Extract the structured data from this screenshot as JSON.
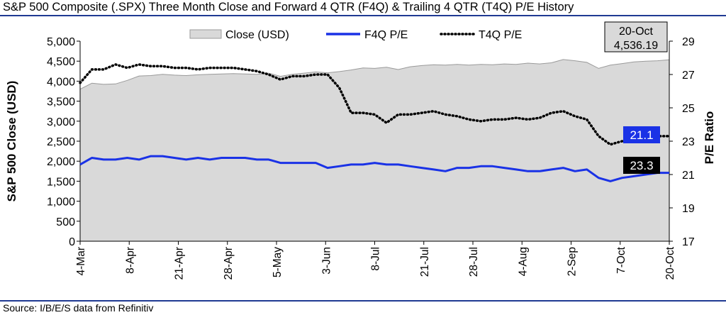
{
  "title": "S&P 500 Composite (.SPX) Three Month Close and Forward 4 QTR (F4Q) & Trailing 4 QTR (T4Q) P/E History",
  "source": "Source: I/B/E/S data from Refinitiv",
  "colors": {
    "area_fill": "#d9d9d9",
    "area_stroke": "#9a9a9a",
    "f4q": "#1a32e6",
    "t4q": "#000000",
    "f4q_label_bg": "#1a32e6",
    "t4q_label_bg": "#000000",
    "annot_bg": "#d9d9d9"
  },
  "annotation": {
    "date": "20-Oct",
    "value": "4,536.19"
  },
  "end_labels": {
    "f4q": "21.1",
    "t4q": "23.3"
  },
  "chart_data": {
    "type": "line",
    "title": "S&P 500 Composite (.SPX) Three Month Close and Forward 4 QTR (F4Q) & Trailing 4 QTR (T4Q) P/E History",
    "ylabel": "S&P 500 Close (USD)",
    "y2label": "P/E Ratio",
    "ylim": [
      0,
      5000
    ],
    "y2lim": [
      17,
      29
    ],
    "yticks": [
      "0",
      "500",
      "1,000",
      "1,500",
      "2,000",
      "2,500",
      "3,000",
      "3,500",
      "4,000",
      "4,500",
      "5,000"
    ],
    "y2ticks": [
      "17",
      "19",
      "21",
      "23",
      "25",
      "27",
      "29"
    ],
    "xticks": [
      "4-Mar",
      "8-Apr",
      "21-Apr",
      "28-Apr",
      "5-May",
      "3-Jun",
      "8-Jul",
      "21-Jul",
      "28-Jul",
      "4-Aug",
      "2-Sep",
      "7-Oct",
      "20-Oct"
    ],
    "legend": [
      "Close (USD)",
      "F4Q P/E",
      "T4Q P/E"
    ],
    "legend_position": "top",
    "series": [
      {
        "name": "Close (USD)",
        "type": "area",
        "axis": "left",
        "values": [
          3800,
          3950,
          3920,
          3930,
          4020,
          4130,
          4140,
          4170,
          4150,
          4140,
          4160,
          4170,
          4180,
          4190,
          4180,
          4170,
          4200,
          4120,
          4170,
          4200,
          4230,
          4210,
          4240,
          4280,
          4330,
          4320,
          4350,
          4290,
          4360,
          4390,
          4410,
          4400,
          4420,
          4400,
          4420,
          4410,
          4430,
          4420,
          4450,
          4430,
          4460,
          4540,
          4510,
          4470,
          4320,
          4400,
          4440,
          4480,
          4500,
          4510,
          4536
        ]
      },
      {
        "name": "F4Q P/E",
        "type": "line",
        "axis": "right",
        "values": [
          21.6,
          22.0,
          21.9,
          21.9,
          22.0,
          21.9,
          22.1,
          22.1,
          22.0,
          21.9,
          22.0,
          21.9,
          22.0,
          22.0,
          22.0,
          21.9,
          21.9,
          21.7,
          21.7,
          21.7,
          21.7,
          21.4,
          21.5,
          21.6,
          21.6,
          21.7,
          21.6,
          21.6,
          21.5,
          21.4,
          21.3,
          21.2,
          21.4,
          21.4,
          21.5,
          21.5,
          21.4,
          21.3,
          21.2,
          21.2,
          21.3,
          21.4,
          21.2,
          21.3,
          20.8,
          20.6,
          20.8,
          20.9,
          21.0,
          21.1,
          21.1
        ]
      },
      {
        "name": "T4Q P/E",
        "type": "line",
        "axis": "right",
        "values": [
          26.5,
          27.3,
          27.3,
          27.6,
          27.4,
          27.6,
          27.5,
          27.5,
          27.4,
          27.4,
          27.3,
          27.4,
          27.4,
          27.4,
          27.3,
          27.2,
          27.0,
          26.7,
          26.9,
          26.9,
          27.0,
          27.0,
          26.2,
          24.7,
          24.7,
          24.6,
          24.1,
          24.6,
          24.6,
          24.7,
          24.8,
          24.6,
          24.5,
          24.3,
          24.2,
          24.3,
          24.3,
          24.4,
          24.3,
          24.4,
          24.7,
          24.8,
          24.5,
          24.3,
          23.3,
          22.8,
          23.0,
          23.2,
          23.2,
          23.3,
          23.3
        ]
      }
    ]
  }
}
